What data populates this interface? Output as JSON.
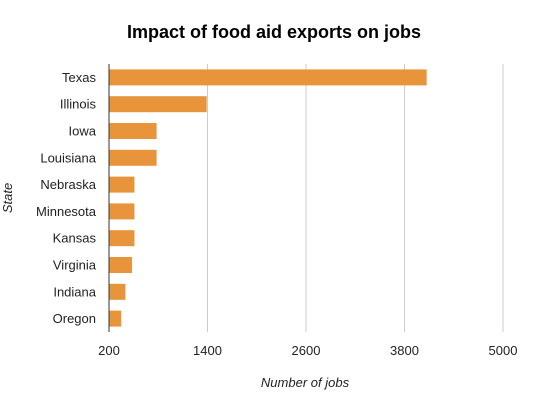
{
  "chart_data": {
    "type": "bar",
    "orientation": "horizontal",
    "title": "Impact of food aid exports on jobs",
    "xlabel": "Number of jobs",
    "ylabel": "State",
    "categories": [
      "Texas",
      "Illinois",
      "Iowa",
      "Louisiana",
      "Nebraska",
      "Minnesota",
      "Kansas",
      "Virginia",
      "Indiana",
      "Oregon"
    ],
    "values": [
      4070,
      1390,
      780,
      780,
      510,
      510,
      510,
      480,
      400,
      350
    ],
    "xlim": [
      200,
      5000
    ],
    "xticks": [
      200,
      1400,
      2600,
      3800,
      5000
    ],
    "grid": true,
    "legend": "none",
    "bar_color": "#e8943a"
  }
}
